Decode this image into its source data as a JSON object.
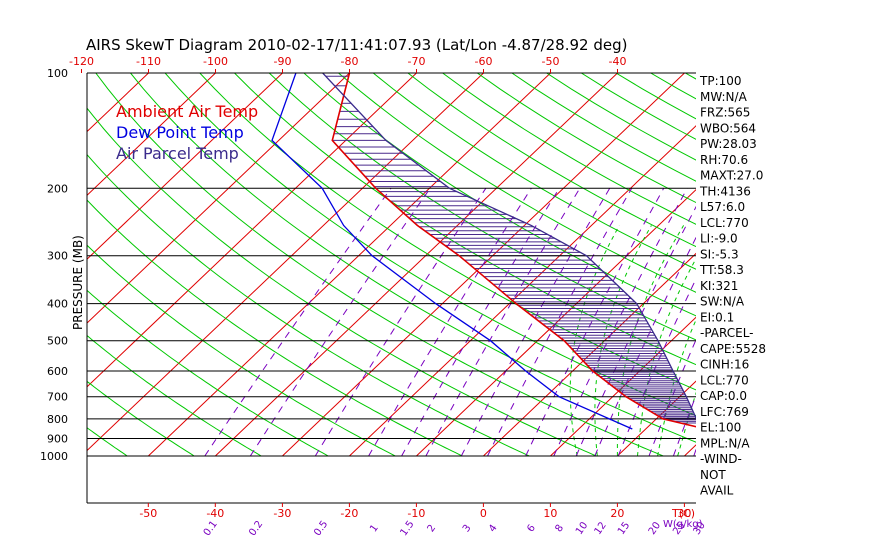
{
  "chart_data": {
    "type": "line",
    "title": "AIRS SkewT Diagram 2010-02-17/11:41:07.93 (Lat/Lon -4.87/28.92 deg)",
    "ylabel": "PRESSURE (MB)",
    "xlabel_right": "T(C)",
    "mixing_label": "W(g/kg)",
    "top_ticks": [
      -120,
      -110,
      -100,
      -90,
      -80,
      -70,
      -60,
      -50,
      -40
    ],
    "bottom_ticks": [
      -50,
      -40,
      -30,
      -20,
      -10,
      0,
      10,
      20,
      30
    ],
    "pressure_levels": [
      100,
      200,
      300,
      400,
      500,
      600,
      700,
      800,
      900,
      1000
    ],
    "mixing_ratios": [
      "0.1",
      "0.2",
      "0.5",
      "1",
      "1.5",
      "2",
      "3",
      "4",
      "6",
      "8",
      "10",
      "12",
      "15",
      "20",
      "25",
      "30"
    ],
    "legend": [
      {
        "name": "Ambient Air Temp",
        "color": "#e00000"
      },
      {
        "name": "Dew Point Temp",
        "color": "#0000e0"
      },
      {
        "name": "Air Parcel Temp",
        "color": "#3a2a8c"
      }
    ],
    "series": [
      {
        "name": "Ambient Air Temp",
        "color": "#e00000",
        "points": [
          [
            850,
            29
          ],
          [
            800,
            21
          ],
          [
            700,
            12
          ],
          [
            600,
            3
          ],
          [
            500,
            -6
          ],
          [
            400,
            -19
          ],
          [
            300,
            -35
          ],
          [
            250,
            -46
          ],
          [
            200,
            -58
          ],
          [
            150,
            -72
          ],
          [
            100,
            -80
          ]
        ]
      },
      {
        "name": "Dew Point Temp",
        "color": "#0000e0",
        "points": [
          [
            850,
            18
          ],
          [
            700,
            2
          ],
          [
            600,
            -7
          ],
          [
            500,
            -17
          ],
          [
            400,
            -31
          ],
          [
            300,
            -48
          ],
          [
            250,
            -57
          ],
          [
            200,
            -66
          ],
          [
            150,
            -81
          ],
          [
            100,
            -88
          ]
        ]
      },
      {
        "name": "Air Parcel Temp",
        "color": "#3a2a8c",
        "points": [
          [
            850,
            29
          ],
          [
            800,
            26
          ],
          [
            700,
            21
          ],
          [
            600,
            15
          ],
          [
            500,
            8
          ],
          [
            400,
            -1
          ],
          [
            300,
            -16
          ],
          [
            250,
            -29
          ],
          [
            200,
            -47
          ],
          [
            150,
            -64
          ],
          [
            100,
            -84
          ]
        ]
      }
    ]
  },
  "stats": [
    "TP:100",
    "MW:N/A",
    "FRZ:565",
    "WBO:564",
    "PW:28.03",
    "RH:70.6",
    "MAXT:27.0",
    "TH:4136",
    "L57:6.0",
    "LCL:770",
    "LI:-9.0",
    "SI:-5.3",
    "TT:58.3",
    "KI:321",
    "SW:N/A",
    "EI:0.1",
    "-PARCEL-",
    "CAPE:5528",
    "CINH:16",
    "LCL:770",
    "CAP:0.0",
    "LFC:769",
    "EL:100",
    "MPL:N/A",
    "-WIND-",
    "NOT",
    "AVAIL"
  ],
  "colors": {
    "isotherm": "#e00000",
    "dry_adiabat": "#00c800",
    "mixing": "#7a00c0",
    "isobar": "#000000"
  }
}
